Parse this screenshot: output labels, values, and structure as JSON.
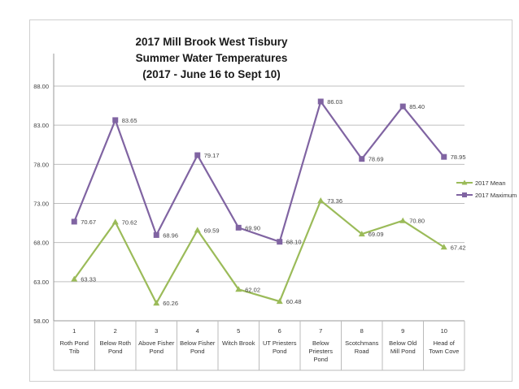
{
  "chart_data": {
    "type": "line",
    "title_lines": [
      "2017 Mill Brook West Tisbury",
      "Summer Water Temperatures",
      "(2017 - June 16 to  Sept 10)"
    ],
    "ylim": [
      58,
      88
    ],
    "yticks": [
      "58.00",
      "63.00",
      "68.00",
      "73.00",
      "78.00",
      "83.00",
      "88.00"
    ],
    "grid": true,
    "legend_position": "right",
    "categories": [
      {
        "num": "1",
        "name": [
          "Roth Pond",
          "Trib"
        ]
      },
      {
        "num": "2",
        "name": [
          "Below Roth",
          "Pond"
        ]
      },
      {
        "num": "3",
        "name": [
          "Above Fisher",
          "Pond"
        ]
      },
      {
        "num": "4",
        "name": [
          "Below Fisher",
          "Pond"
        ]
      },
      {
        "num": "5",
        "name": [
          "Witch Brook"
        ]
      },
      {
        "num": "6",
        "name": [
          "UT Priesters",
          "Pond"
        ]
      },
      {
        "num": "7",
        "name": [
          "Below",
          "Priesters",
          "Pond"
        ]
      },
      {
        "num": "8",
        "name": [
          "Scotchmans",
          "Road"
        ]
      },
      {
        "num": "9",
        "name": [
          "Below Old",
          "Mill Pond"
        ]
      },
      {
        "num": "10",
        "name": [
          "Head of",
          "Town Cove"
        ]
      }
    ],
    "series": [
      {
        "name": "2017 Mean",
        "color": "#9bbb59",
        "marker": "triangle",
        "values": [
          63.33,
          70.62,
          60.26,
          69.59,
          62.02,
          60.48,
          73.36,
          69.09,
          70.8,
          67.42
        ],
        "labels": [
          "63.33",
          "70.62",
          "60.26",
          "69.59",
          "62.02",
          "60.48",
          "73.36",
          "69.09",
          "70.80",
          "67.42"
        ]
      },
      {
        "name": "2017 Maximum",
        "color": "#8064a2",
        "marker": "square",
        "values": [
          70.67,
          83.65,
          68.96,
          79.17,
          69.9,
          68.1,
          86.03,
          78.69,
          85.4,
          78.95
        ],
        "labels": [
          "70.67",
          "83.65",
          "68.96",
          "79.17",
          "69.90",
          "68.10",
          "86.03",
          "78.69",
          "85.40",
          "78.95"
        ]
      }
    ]
  }
}
